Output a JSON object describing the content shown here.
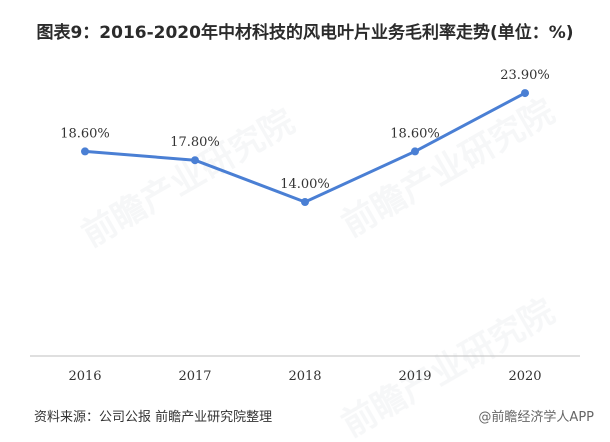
{
  "title": "图表9：2016-2020年中材科技的风电叶片业务毛利率走势(单位：%)",
  "footer": {
    "source": "资料来源：公司公报 前瞻产业研究院整理",
    "brand": "@前瞻经济学人APP"
  },
  "watermark": "前瞻产业研究院",
  "colors": {
    "line": "#4a7fd4",
    "axis": "#bfbfbf",
    "label": "#333333"
  },
  "chart_data": {
    "type": "line",
    "title": "图表9：2016-2020年中材科技的风电叶片业务毛利率走势(单位：%)",
    "categories": [
      "2016",
      "2017",
      "2018",
      "2019",
      "2020"
    ],
    "series": [
      {
        "values": [
          18.6,
          17.8,
          14.0,
          18.6,
          23.9
        ]
      }
    ],
    "data_labels": [
      "18.60%",
      "17.80%",
      "14.00%",
      "18.60%",
      "23.90%"
    ],
    "ylim": [
      0,
      28
    ],
    "grid": false,
    "legend": "none"
  }
}
